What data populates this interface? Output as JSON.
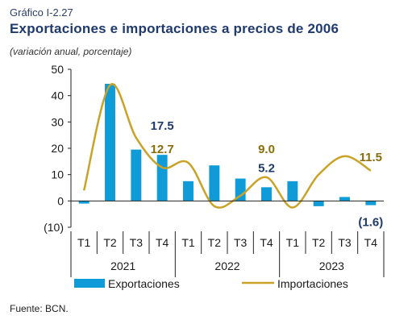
{
  "header": {
    "label": "Gráfico I-2.27",
    "title": "Exportaciones e importaciones a precios de 2006",
    "subtitle": "(variación anual, porcentaje)"
  },
  "footer": {
    "source": "Fuente: BCN."
  },
  "chart_data": {
    "type": "bar",
    "categories": [
      "T1",
      "T2",
      "T3",
      "T4",
      "T1",
      "T2",
      "T3",
      "T4",
      "T1",
      "T2",
      "T3",
      "T4"
    ],
    "years": [
      "2021",
      "2022",
      "2023"
    ],
    "ylim": [
      -10,
      50
    ],
    "yticks": [
      50,
      40,
      30,
      20,
      10,
      0,
      -10
    ],
    "ytick_labels": [
      "50",
      "40",
      "30",
      "20",
      "10",
      "0",
      "(10)"
    ],
    "series": [
      {
        "name": "Exportaciones",
        "type": "bar",
        "color": "#0f9bd7",
        "values": [
          -1.0,
          44.5,
          19.5,
          17.5,
          7.5,
          13.5,
          8.5,
          5.2,
          7.5,
          -2.0,
          1.5,
          -1.6
        ]
      },
      {
        "name": "Importaciones",
        "type": "line",
        "color": "#c9a227",
        "values": [
          4.0,
          44.0,
          24.0,
          12.7,
          14.5,
          -2.0,
          2.0,
          9.0,
          -2.5,
          10.0,
          17.0,
          11.5
        ]
      }
    ],
    "annotations": [
      {
        "series": 0,
        "index": 3,
        "text": "17.5",
        "color": "#1f3a6e"
      },
      {
        "series": 1,
        "index": 3,
        "text": "12.7",
        "color": "#8a6d0b"
      },
      {
        "series": 1,
        "index": 7,
        "text": "9.0",
        "color": "#8a6d0b"
      },
      {
        "series": 0,
        "index": 7,
        "text": "5.2",
        "color": "#1f3a6e"
      },
      {
        "series": 1,
        "index": 11,
        "text": "11.5",
        "color": "#8a6d0b"
      },
      {
        "series": 0,
        "index": 11,
        "text": "(1.6)",
        "color": "#1f3a6e"
      }
    ],
    "legend": [
      "Exportaciones",
      "Importaciones"
    ],
    "legend_position": "bottom"
  }
}
